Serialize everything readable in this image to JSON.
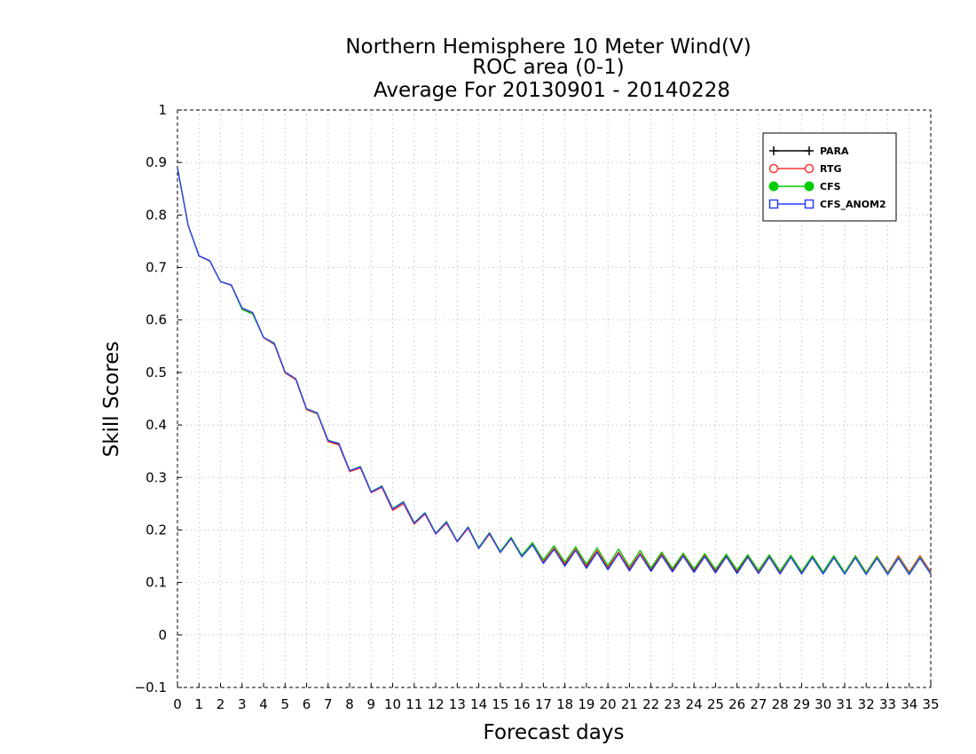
{
  "chart_data": {
    "type": "line",
    "title_lines": [
      "Northern Hemisphere 10 Meter Wind(V)",
      "ROC area (0-1)",
      "Average For 20130901 - 20140228"
    ],
    "xlabel": "Forecast days",
    "ylabel": "Skill Scores",
    "xlim": [
      0,
      35
    ],
    "ylim": [
      -0.1,
      1
    ],
    "x_ticks": [
      0,
      1,
      2,
      3,
      4,
      5,
      6,
      7,
      8,
      9,
      10,
      11,
      12,
      13,
      14,
      15,
      16,
      17,
      18,
      19,
      20,
      21,
      22,
      23,
      24,
      25,
      26,
      27,
      28,
      29,
      30,
      31,
      32,
      33,
      34,
      35
    ],
    "y_ticks": [
      -0.1,
      0,
      0.1,
      0.2,
      0.3,
      0.4,
      0.5,
      0.6,
      0.7,
      0.8,
      0.9,
      1
    ],
    "y_tick_labels": [
      "−0.1",
      "0",
      "0.1",
      "0.2",
      "0.3",
      "0.4",
      "0.5",
      "0.6",
      "0.7",
      "0.8",
      "0.9",
      "1"
    ],
    "grid": "dotted",
    "legend_position": "top-right",
    "x": [
      0,
      0.5,
      1,
      1.5,
      2,
      2.5,
      3,
      3.5,
      4,
      4.5,
      5,
      5.5,
      6,
      6.5,
      7,
      7.5,
      8,
      8.5,
      9,
      9.5,
      10,
      10.5,
      11,
      11.5,
      12,
      12.5,
      13,
      13.5,
      14,
      14.5,
      15,
      15.5,
      16,
      16.5,
      17,
      17.5,
      18,
      18.5,
      19,
      19.5,
      20,
      20.5,
      21,
      21.5,
      22,
      22.5,
      23,
      23.5,
      24,
      24.5,
      25,
      25.5,
      26,
      26.5,
      27,
      27.5,
      28,
      28.5,
      29,
      29.5,
      30,
      30.5,
      31,
      31.5,
      32,
      32.5,
      33,
      33.5,
      34,
      34.5,
      35
    ],
    "series": [
      {
        "name": "PARA",
        "color": "#000000",
        "marker": "plus",
        "values": [
          0.89,
          0.78,
          0.722,
          0.713,
          0.673,
          0.667,
          0.622,
          0.613,
          0.567,
          0.555,
          0.5,
          0.487,
          0.43,
          0.422,
          0.37,
          0.364,
          0.313,
          0.32,
          0.272,
          0.283,
          0.24,
          0.253,
          0.213,
          0.232,
          0.193,
          0.215,
          0.178,
          0.205,
          0.165,
          0.194,
          0.157,
          0.184,
          0.149,
          0.172,
          0.137,
          0.165,
          0.133,
          0.163,
          0.129,
          0.159,
          0.126,
          0.157,
          0.124,
          0.155,
          0.123,
          0.153,
          0.122,
          0.152,
          0.121,
          0.151,
          0.12,
          0.151,
          0.119,
          0.15,
          0.119,
          0.15,
          0.118,
          0.15,
          0.118,
          0.149,
          0.118,
          0.149,
          0.117,
          0.149,
          0.117,
          0.148,
          0.117,
          0.148,
          0.116,
          0.148,
          0.118
        ]
      },
      {
        "name": "RTG",
        "color": "#ff3333",
        "marker": "circle",
        "values": [
          0.89,
          0.78,
          0.722,
          0.712,
          0.673,
          0.666,
          0.621,
          0.612,
          0.566,
          0.553,
          0.499,
          0.486,
          0.429,
          0.421,
          0.368,
          0.362,
          0.311,
          0.318,
          0.271,
          0.281,
          0.237,
          0.25,
          0.211,
          0.23,
          0.192,
          0.213,
          0.177,
          0.203,
          0.165,
          0.192,
          0.157,
          0.183,
          0.15,
          0.173,
          0.14,
          0.166,
          0.136,
          0.164,
          0.132,
          0.161,
          0.129,
          0.158,
          0.127,
          0.156,
          0.126,
          0.155,
          0.125,
          0.154,
          0.124,
          0.153,
          0.123,
          0.153,
          0.122,
          0.152,
          0.121,
          0.152,
          0.12,
          0.151,
          0.12,
          0.151,
          0.12,
          0.151,
          0.119,
          0.151,
          0.119,
          0.15,
          0.119,
          0.151,
          0.12,
          0.151,
          0.12
        ]
      },
      {
        "name": "CFS",
        "color": "#00cc00",
        "marker": "dot",
        "values": [
          0.89,
          0.78,
          0.722,
          0.713,
          0.673,
          0.667,
          0.62,
          0.611,
          0.567,
          0.555,
          0.501,
          0.488,
          0.431,
          0.422,
          0.371,
          0.365,
          0.313,
          0.321,
          0.273,
          0.284,
          0.241,
          0.254,
          0.214,
          0.233,
          0.194,
          0.216,
          0.179,
          0.206,
          0.167,
          0.195,
          0.159,
          0.186,
          0.152,
          0.176,
          0.143,
          0.17,
          0.139,
          0.168,
          0.135,
          0.166,
          0.132,
          0.164,
          0.13,
          0.161,
          0.128,
          0.158,
          0.127,
          0.156,
          0.126,
          0.155,
          0.125,
          0.154,
          0.124,
          0.153,
          0.123,
          0.153,
          0.122,
          0.152,
          0.121,
          0.151,
          0.12,
          0.151,
          0.119,
          0.15,
          0.118,
          0.149,
          0.117,
          0.148,
          0.117,
          0.148,
          0.117
        ]
      },
      {
        "name": "CFS_ANOM2",
        "color": "#2a3fff",
        "marker": "square",
        "values": [
          0.89,
          0.78,
          0.722,
          0.713,
          0.673,
          0.667,
          0.623,
          0.614,
          0.567,
          0.556,
          0.501,
          0.488,
          0.431,
          0.423,
          0.37,
          0.365,
          0.313,
          0.32,
          0.272,
          0.283,
          0.24,
          0.253,
          0.213,
          0.232,
          0.193,
          0.215,
          0.178,
          0.205,
          0.165,
          0.194,
          0.157,
          0.184,
          0.149,
          0.172,
          0.136,
          0.163,
          0.131,
          0.161,
          0.127,
          0.157,
          0.124,
          0.155,
          0.122,
          0.153,
          0.121,
          0.151,
          0.12,
          0.15,
          0.119,
          0.149,
          0.118,
          0.149,
          0.117,
          0.148,
          0.117,
          0.148,
          0.116,
          0.148,
          0.116,
          0.147,
          0.116,
          0.147,
          0.116,
          0.147,
          0.115,
          0.146,
          0.115,
          0.146,
          0.115,
          0.146,
          0.116
        ]
      }
    ]
  }
}
